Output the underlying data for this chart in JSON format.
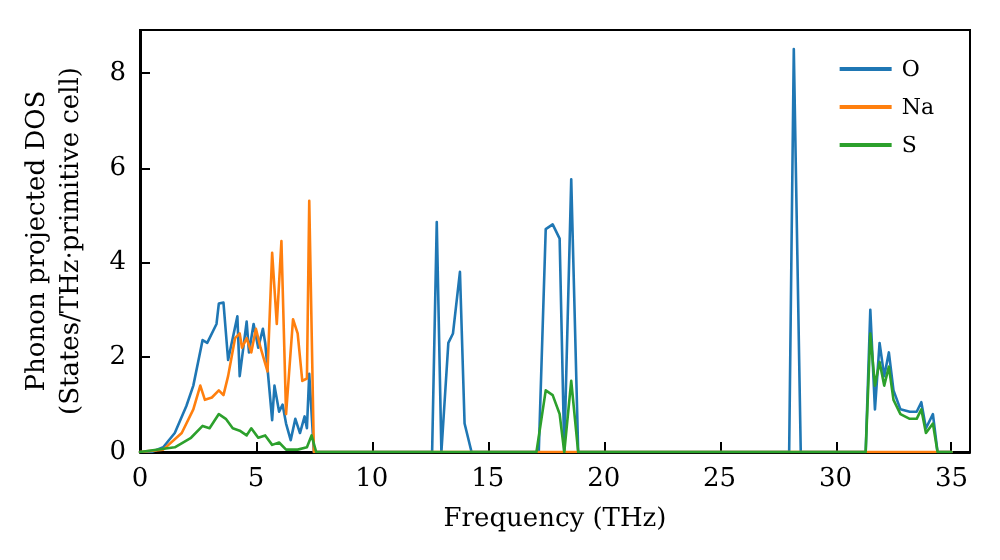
{
  "chart_data": {
    "type": "line",
    "xlabel": "Frequency (THz)",
    "ylabel": "Phonon projected DOS\n(States/THz·primitive cell)",
    "xlim": [
      0,
      35.8
    ],
    "xticks": [
      0,
      5,
      10,
      15,
      20,
      25,
      30,
      35
    ],
    "ylim": [
      0,
      8.9
    ],
    "yticks": [
      0,
      2,
      4,
      6,
      8
    ],
    "legend": "top right",
    "grid": false,
    "marker": "none",
    "line_style": "solid",
    "series": [
      {
        "name": "O",
        "color": "#1f77b4",
        "x": [
          0,
          0.5,
          1.0,
          1.5,
          2.0,
          2.3,
          2.7,
          2.9,
          3.3,
          3.4,
          3.6,
          3.8,
          4.2,
          4.3,
          4.6,
          4.7,
          4.9,
          5.1,
          5.3,
          5.4,
          5.7,
          5.8,
          6.0,
          6.15,
          6.3,
          6.5,
          6.7,
          6.9,
          7.1,
          7.2,
          7.3,
          7.5,
          12.6,
          12.8,
          13.0,
          13.3,
          13.5,
          13.8,
          14.0,
          14.3,
          17.2,
          17.5,
          17.8,
          18.1,
          18.3,
          18.6,
          18.9,
          28.0,
          28.2,
          28.5,
          31.3,
          31.5,
          31.7,
          31.9,
          32.1,
          32.3,
          32.5,
          32.8,
          33.2,
          33.5,
          33.7,
          33.9,
          34.2,
          34.4,
          35.0
        ],
        "values": [
          0,
          0,
          0.1,
          0.4,
          0.97,
          1.4,
          2.36,
          2.3,
          2.7,
          3.13,
          3.15,
          1.94,
          2.86,
          1.6,
          2.75,
          2.1,
          2.7,
          2.2,
          2.6,
          2.3,
          0.67,
          1.4,
          0.85,
          1.0,
          0.6,
          0.25,
          0.7,
          0.4,
          0.75,
          0.5,
          1.65,
          0,
          0,
          4.85,
          0,
          2.3,
          2.5,
          3.8,
          0.6,
          0,
          0,
          4.7,
          4.8,
          4.5,
          0,
          5.75,
          0,
          0,
          8.5,
          0,
          0,
          3.0,
          0.9,
          2.3,
          1.6,
          2.1,
          1.3,
          0.9,
          0.85,
          0.85,
          1.05,
          0.5,
          0.8,
          0,
          0
        ]
      },
      {
        "name": "Na",
        "color": "#ff7f0e",
        "x": [
          0,
          1.0,
          1.8,
          2.3,
          2.6,
          2.8,
          3.1,
          3.4,
          3.6,
          3.8,
          4.1,
          4.3,
          4.4,
          4.6,
          4.8,
          5.0,
          5.2,
          5.5,
          5.7,
          5.9,
          6.1,
          6.3,
          6.6,
          6.8,
          7.0,
          7.2,
          7.3,
          7.5,
          35.0
        ],
        "values": [
          0,
          0.05,
          0.4,
          0.9,
          1.4,
          1.1,
          1.15,
          1.3,
          1.2,
          1.6,
          2.4,
          2.5,
          2.2,
          2.4,
          2.1,
          2.6,
          2.2,
          1.7,
          4.2,
          2.7,
          4.45,
          0.8,
          2.8,
          2.5,
          1.5,
          1.55,
          5.3,
          0,
          0
        ]
      },
      {
        "name": "S",
        "color": "#2ca02c",
        "x": [
          0,
          1.5,
          2.2,
          2.7,
          3.0,
          3.4,
          3.7,
          4.0,
          4.3,
          4.6,
          4.8,
          5.1,
          5.4,
          5.7,
          6.0,
          6.3,
          6.8,
          7.2,
          7.4,
          7.6,
          17.1,
          17.5,
          17.8,
          18.1,
          18.3,
          18.6,
          18.9,
          31.3,
          31.5,
          31.7,
          31.9,
          32.1,
          32.3,
          32.5,
          32.8,
          33.2,
          33.5,
          33.7,
          33.9,
          34.2,
          34.4,
          35.0
        ],
        "values": [
          0,
          0.1,
          0.3,
          0.55,
          0.5,
          0.8,
          0.7,
          0.5,
          0.45,
          0.35,
          0.5,
          0.3,
          0.35,
          0.15,
          0.2,
          0.05,
          0.05,
          0.1,
          0.35,
          0,
          0,
          1.3,
          1.2,
          0.8,
          0,
          1.5,
          0,
          0,
          2.5,
          1.4,
          1.9,
          1.4,
          1.8,
          1.1,
          0.8,
          0.7,
          0.7,
          0.9,
          0.4,
          0.6,
          0,
          0
        ]
      }
    ]
  }
}
